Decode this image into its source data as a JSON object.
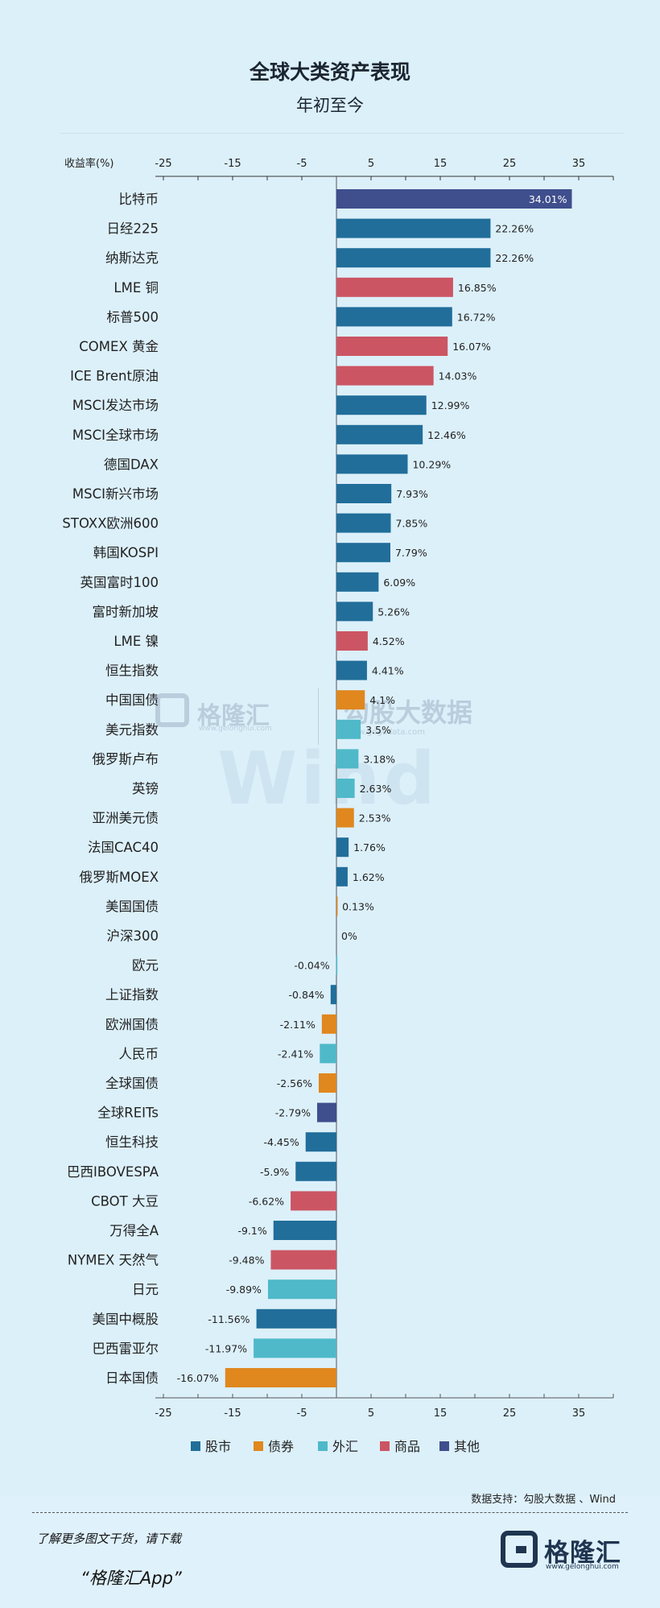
{
  "header": {
    "title": "全球大类资产表现",
    "subtitle": "年初至今"
  },
  "watermarks": {
    "gelonghui_name": "格隆汇",
    "gelonghui_url": "www.gelonghui.com",
    "gogudata_name": "勾股大数据",
    "gogudata_url": "www.gogudata.com",
    "wind": "Wind"
  },
  "source_text": "数据支持：勾股大数据 、Wind",
  "footer": {
    "line1": "了解更多图文干货，请下载",
    "line2": "“格隆汇App”",
    "logo_name": "格隆汇",
    "logo_url": "www.gelonghui.com"
  },
  "chart_data": {
    "type": "bar",
    "orientation": "horizontal",
    "ylabel": "收益率(%)",
    "xlim": [
      -25,
      35
    ],
    "ticks": [
      -25,
      -15,
      -5,
      5,
      15,
      25,
      35
    ],
    "tick_labels": [
      "-25",
      "-15",
      "-5",
      "5",
      "15",
      "25",
      "35"
    ],
    "minor_ticks": [
      -20,
      -10,
      0,
      10,
      20,
      30,
      40
    ],
    "legend_position": "bottom",
    "colors": {
      "股市": "#216e9a",
      "债券": "#e0871e",
      "外汇": "#4fb9c9",
      "商品": "#cc5563",
      "其他": "#3f4e8d"
    },
    "legend": [
      "股市",
      "债券",
      "外汇",
      "商品",
      "其他"
    ],
    "bars": [
      {
        "label": "比特币",
        "value": 34.01,
        "text": "34.01%",
        "group": "其他"
      },
      {
        "label": "日经225",
        "value": 22.26,
        "text": "22.26%",
        "group": "股市"
      },
      {
        "label": "纳斯达克",
        "value": 22.26,
        "text": "22.26%",
        "group": "股市"
      },
      {
        "label": "LME 铜",
        "value": 16.85,
        "text": "16.85%",
        "group": "商品"
      },
      {
        "label": "标普500",
        "value": 16.72,
        "text": "16.72%",
        "group": "股市"
      },
      {
        "label": "COMEX 黄金",
        "value": 16.07,
        "text": "16.07%",
        "group": "商品"
      },
      {
        "label": "ICE Brent原油",
        "value": 14.03,
        "text": "14.03%",
        "group": "商品"
      },
      {
        "label": "MSCI发达市场",
        "value": 12.99,
        "text": "12.99%",
        "group": "股市"
      },
      {
        "label": "MSCI全球市场",
        "value": 12.46,
        "text": "12.46%",
        "group": "股市"
      },
      {
        "label": "德国DAX",
        "value": 10.29,
        "text": "10.29%",
        "group": "股市"
      },
      {
        "label": "MSCI新兴市场",
        "value": 7.93,
        "text": "7.93%",
        "group": "股市"
      },
      {
        "label": "STOXX欧洲600",
        "value": 7.85,
        "text": "7.85%",
        "group": "股市"
      },
      {
        "label": "韩国KOSPI",
        "value": 7.79,
        "text": "7.79%",
        "group": "股市"
      },
      {
        "label": "英国富时100",
        "value": 6.09,
        "text": "6.09%",
        "group": "股市"
      },
      {
        "label": "富时新加坡",
        "value": 5.26,
        "text": "5.26%",
        "group": "股市"
      },
      {
        "label": "LME 镍",
        "value": 4.52,
        "text": "4.52%",
        "group": "商品"
      },
      {
        "label": "恒生指数",
        "value": 4.41,
        "text": "4.41%",
        "group": "股市"
      },
      {
        "label": "中国国债",
        "value": 4.1,
        "text": "4.1%",
        "group": "债券"
      },
      {
        "label": "美元指数",
        "value": 3.5,
        "text": "3.5%",
        "group": "外汇"
      },
      {
        "label": "俄罗斯卢布",
        "value": 3.18,
        "text": "3.18%",
        "group": "外汇"
      },
      {
        "label": "英镑",
        "value": 2.63,
        "text": "2.63%",
        "group": "外汇"
      },
      {
        "label": "亚洲美元债",
        "value": 2.53,
        "text": "2.53%",
        "group": "债券"
      },
      {
        "label": "法国CAC40",
        "value": 1.76,
        "text": "1.76%",
        "group": "股市"
      },
      {
        "label": "俄罗斯MOEX",
        "value": 1.62,
        "text": "1.62%",
        "group": "股市"
      },
      {
        "label": "美国国债",
        "value": 0.13,
        "text": "0.13%",
        "group": "债券"
      },
      {
        "label": "沪深300",
        "value": 0,
        "text": "0%",
        "group": "股市"
      },
      {
        "label": "欧元",
        "value": -0.04,
        "text": "-0.04%",
        "group": "外汇"
      },
      {
        "label": "上证指数",
        "value": -0.84,
        "text": "-0.84%",
        "group": "股市"
      },
      {
        "label": "欧洲国债",
        "value": -2.11,
        "text": "-2.11%",
        "group": "债券"
      },
      {
        "label": "人民币",
        "value": -2.41,
        "text": "-2.41%",
        "group": "外汇"
      },
      {
        "label": "全球国债",
        "value": -2.56,
        "text": "-2.56%",
        "group": "债券"
      },
      {
        "label": "全球REITs",
        "value": -2.79,
        "text": "-2.79%",
        "group": "其他"
      },
      {
        "label": "恒生科技",
        "value": -4.45,
        "text": "-4.45%",
        "group": "股市"
      },
      {
        "label": "巴西IBOVESPA",
        "value": -5.9,
        "text": "-5.9%",
        "group": "股市"
      },
      {
        "label": "CBOT 大豆",
        "value": -6.62,
        "text": "-6.62%",
        "group": "商品"
      },
      {
        "label": "万得全A",
        "value": -9.1,
        "text": "-9.1%",
        "group": "股市"
      },
      {
        "label": "NYMEX 天然气",
        "value": -9.48,
        "text": "-9.48%",
        "group": "商品"
      },
      {
        "label": "日元",
        "value": -9.89,
        "text": "-9.89%",
        "group": "外汇"
      },
      {
        "label": "美国中概股",
        "value": -11.56,
        "text": "-11.56%",
        "group": "股市"
      },
      {
        "label": "巴西雷亚尔",
        "value": -11.97,
        "text": "-11.97%",
        "group": "外汇"
      },
      {
        "label": "日本国债",
        "value": -16.07,
        "text": "-16.07%",
        "group": "债券"
      }
    ]
  }
}
